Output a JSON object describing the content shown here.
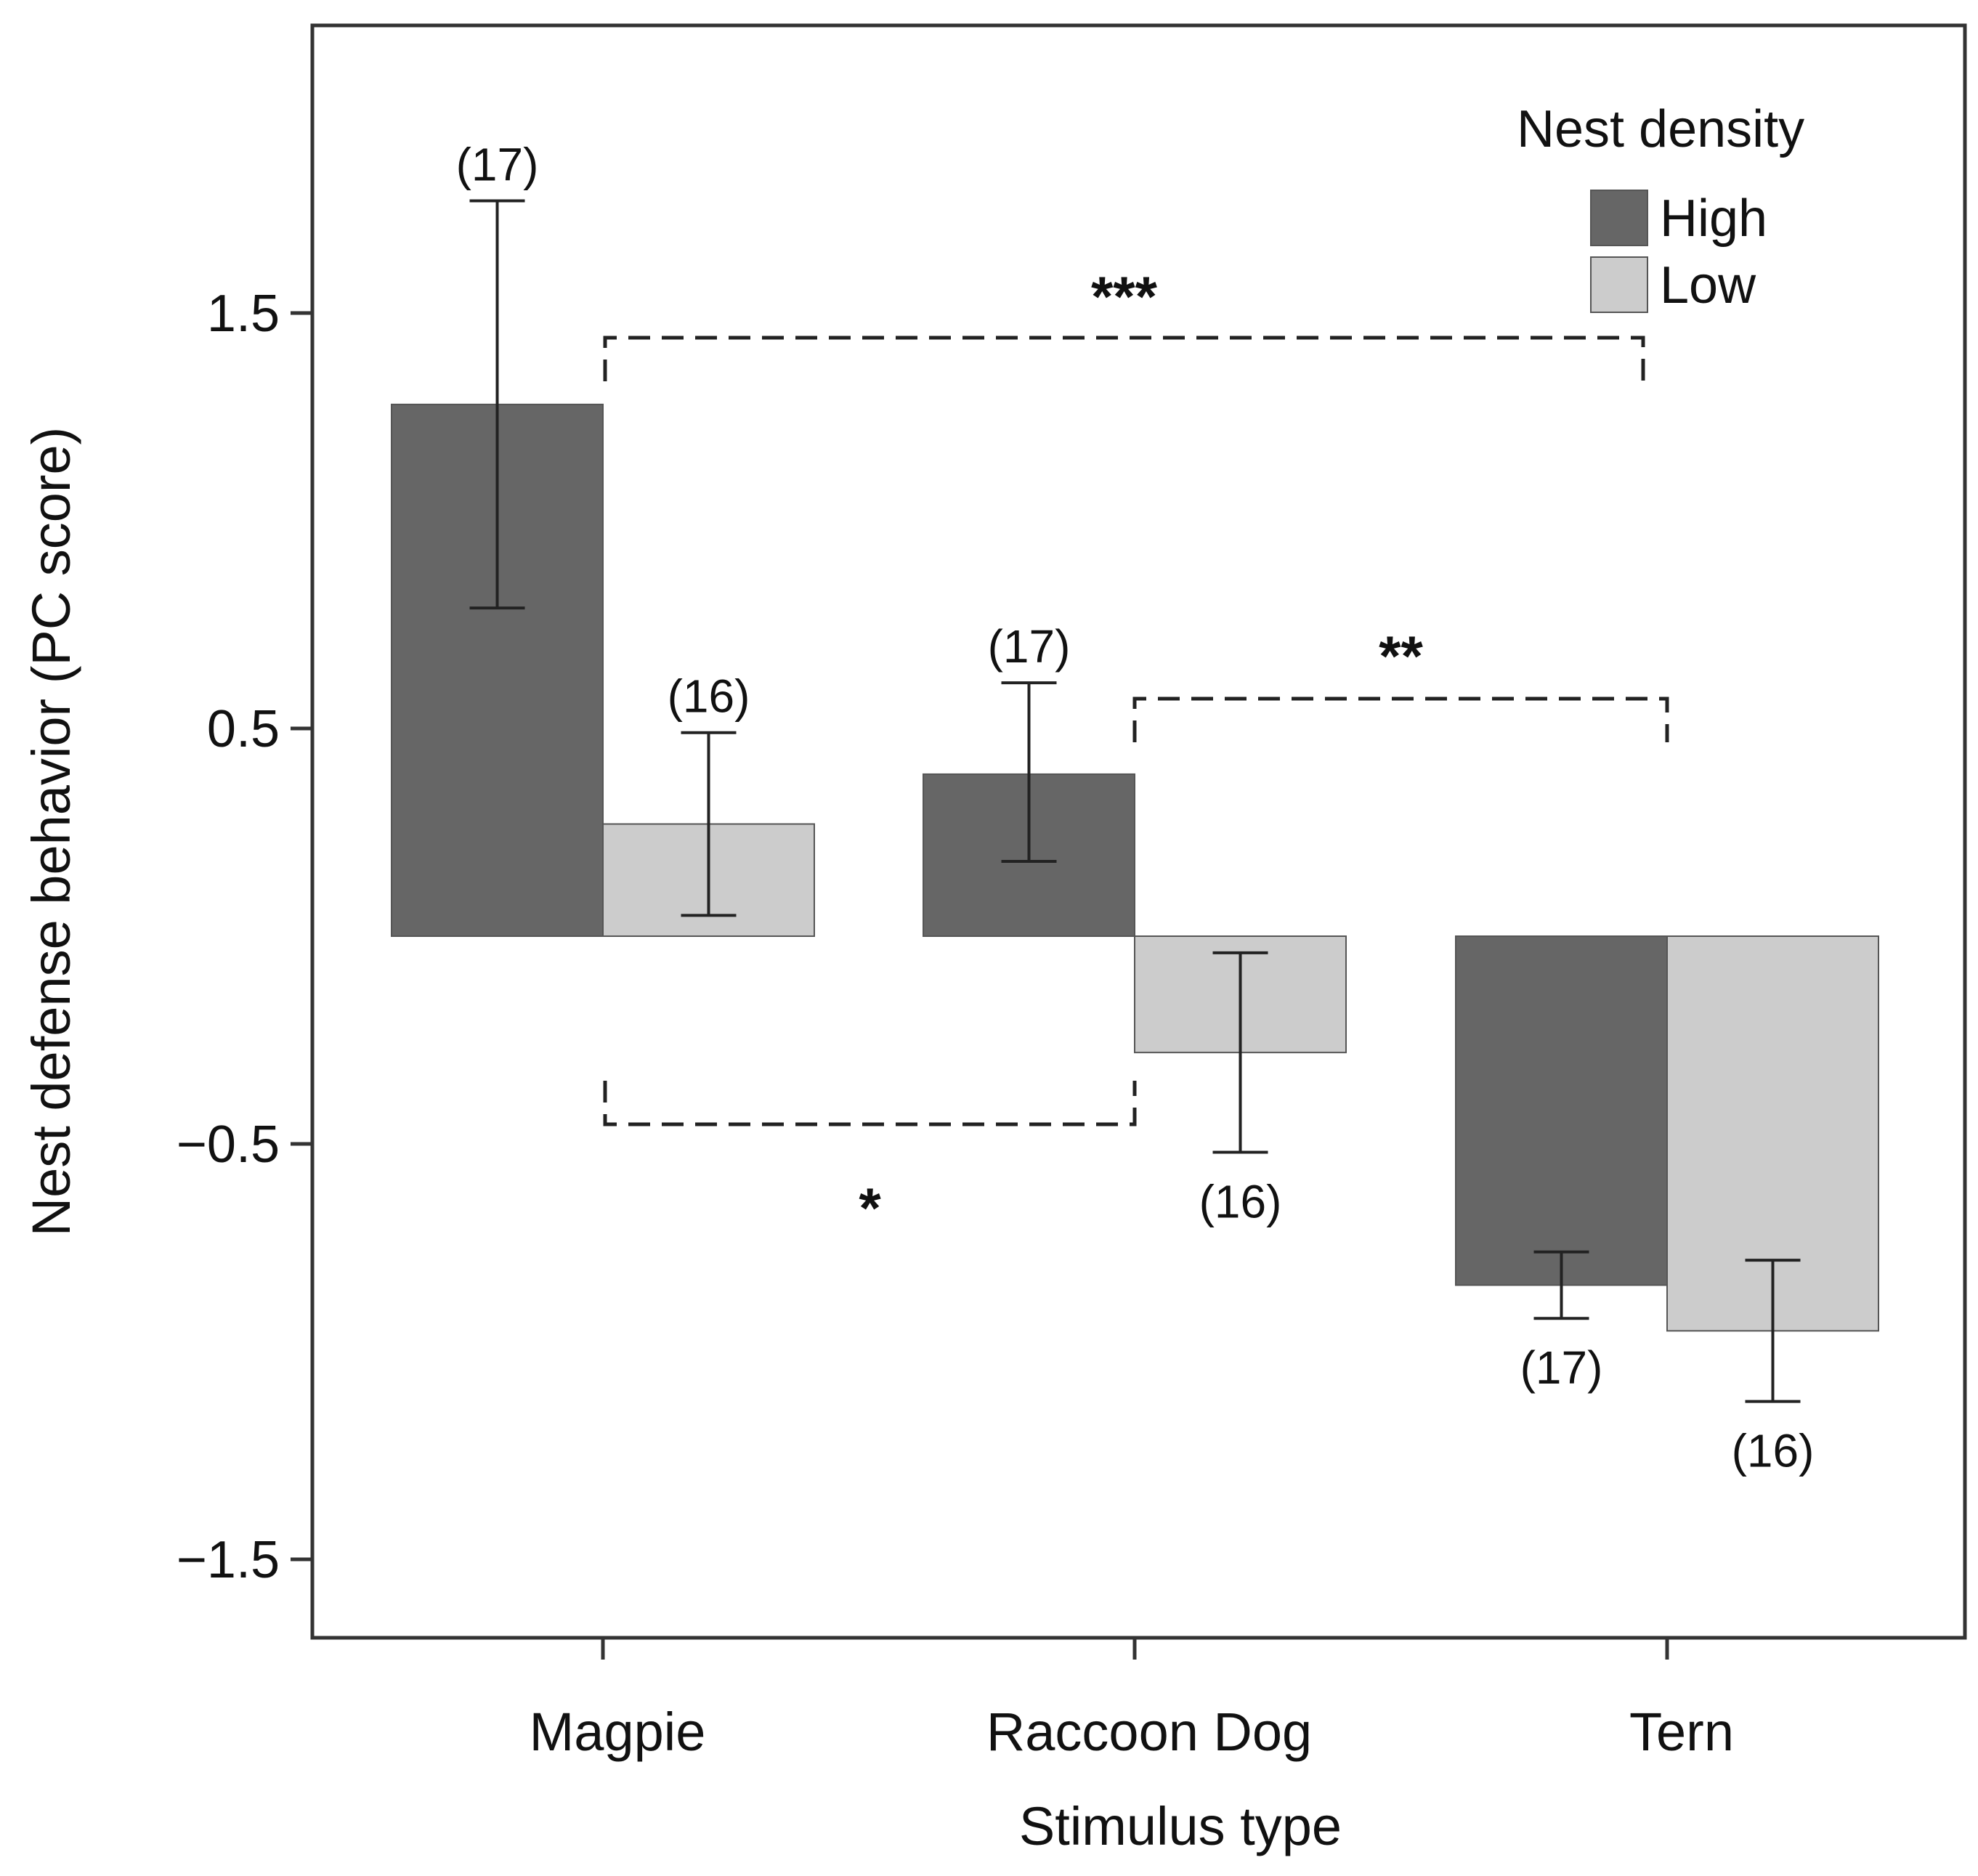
{
  "chart_data": {
    "type": "bar",
    "title": "",
    "xlabel": "Stimulus type",
    "ylabel": "Nest defense behavior (PC score)",
    "ylim": [
      -1.7,
      2.2
    ],
    "yticks": [
      1.5,
      0.5,
      -0.5,
      -1.5
    ],
    "ytick_labels": [
      "1.5",
      "0.5",
      "−0.5",
      "−1.5"
    ],
    "categories": [
      "Magpie",
      "Raccoon Dog",
      "Tern"
    ],
    "legend_title": "Nest density",
    "legend_position": "top-right",
    "grid": false,
    "series": [
      {
        "name": "High",
        "color": "#666666",
        "values": [
          1.28,
          0.39,
          -0.84
        ],
        "err_low": [
          0.79,
          0.18,
          -0.92
        ],
        "err_high": [
          1.77,
          0.61,
          -0.76
        ],
        "n_labels": [
          "(17)",
          "(17)",
          "(17)"
        ]
      },
      {
        "name": "Low",
        "color": "#cccccc",
        "values": [
          0.27,
          -0.28,
          -0.95
        ],
        "err_low": [
          0.05,
          -0.52,
          -1.12
        ],
        "err_high": [
          0.49,
          -0.04,
          -0.78
        ],
        "n_labels": [
          "(16)",
          "(16)",
          "(16)"
        ]
      }
    ],
    "significance": [
      {
        "from": "Magpie",
        "to": "Tern",
        "label": "***"
      },
      {
        "from": "Raccoon Dog",
        "to": "Tern",
        "label": "**"
      },
      {
        "from": "Magpie",
        "to": "Raccoon Dog",
        "label": "*"
      }
    ]
  }
}
